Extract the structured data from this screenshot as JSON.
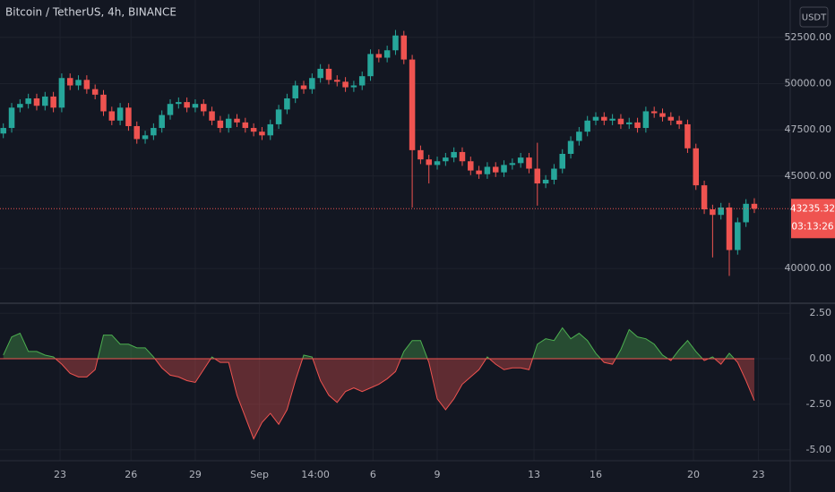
{
  "chart_data": [
    {
      "type": "candlestick",
      "title": "Bitcoin / TetherUS, 4h, BINANCE",
      "currency": "USDT",
      "countdown": "03:13:26",
      "up_color": "#26a69a",
      "down_color": "#ef5350",
      "grid": true,
      "xlim": [
        -0.4,
        94.3
      ],
      "ylim": [
        38170,
        54520
      ],
      "yticks": [
        {
          "value": 40000,
          "label": "40000.00"
        },
        {
          "value": 45000,
          "label": "45000.00"
        },
        {
          "value": 47500,
          "label": "47500.00"
        },
        {
          "value": 50000,
          "label": "50000.00"
        },
        {
          "value": 52500,
          "label": "52500.00"
        }
      ],
      "open": [
        47300,
        47600,
        48700,
        48900,
        49200,
        48800,
        49300,
        48700,
        50300,
        49900,
        50200,
        49700,
        49400,
        48500,
        48000,
        48700,
        47700,
        47000,
        47200,
        47600,
        48300,
        48900,
        49000,
        48700,
        48900,
        48500,
        48000,
        47600,
        48100,
        47900,
        47600,
        47400,
        47200,
        47800,
        48600,
        49200,
        49900,
        49700,
        50300,
        50800,
        50200,
        50100,
        49800,
        49900,
        50400,
        51600,
        51400,
        51800,
        52600,
        51300,
        46400,
        45900,
        45600,
        45800,
        46000,
        46300,
        45800,
        45300,
        45100,
        45500,
        45200,
        45600,
        45700,
        46000,
        45400,
        44600,
        44800,
        45400,
        46200,
        46900,
        47400,
        48000,
        48200,
        48000,
        48100,
        47800,
        47900,
        47600,
        48500,
        48400,
        48200,
        48000,
        47800,
        46500,
        44500,
        43200,
        42900,
        43300,
        41000,
        42500,
        43500
      ],
      "high": [
        47850,
        48950,
        49150,
        49450,
        49450,
        49550,
        49550,
        50550,
        50550,
        50450,
        50450,
        49950,
        49650,
        48750,
        48950,
        48950,
        47950,
        47450,
        47850,
        48550,
        49150,
        49250,
        49250,
        49150,
        49150,
        48750,
        48250,
        48350,
        48350,
        48150,
        47850,
        47650,
        48050,
        48850,
        49450,
        50150,
        50150,
        50550,
        51050,
        51050,
        50450,
        50350,
        50150,
        50650,
        51850,
        51850,
        52050,
        52900,
        52850,
        51550,
        46650,
        46150,
        46050,
        46250,
        46550,
        46550,
        46050,
        45550,
        45750,
        45750,
        45850,
        45950,
        46250,
        46250,
        46800,
        45050,
        45650,
        46450,
        47150,
        47650,
        48250,
        48450,
        48450,
        48350,
        48350,
        48150,
        48150,
        48750,
        48750,
        48650,
        48450,
        48250,
        48050,
        46750,
        44750,
        43450,
        43550,
        43550,
        42750,
        43750,
        43800
      ],
      "low": [
        47050,
        47350,
        48450,
        48650,
        48550,
        48550,
        48450,
        48450,
        49650,
        49650,
        49450,
        49150,
        48250,
        47750,
        47750,
        47450,
        46750,
        46750,
        46950,
        47350,
        48050,
        48650,
        48450,
        48450,
        48250,
        47750,
        47350,
        47350,
        47650,
        47350,
        47150,
        46950,
        46950,
        47550,
        48350,
        48950,
        49450,
        49450,
        50050,
        49950,
        49850,
        49550,
        49550,
        49650,
        50150,
        51150,
        51150,
        51550,
        51050,
        43300,
        45650,
        44600,
        45350,
        45550,
        45750,
        45550,
        45050,
        44850,
        44850,
        44950,
        44950,
        45350,
        45450,
        45150,
        43400,
        44350,
        44550,
        45150,
        45950,
        46650,
        47150,
        47750,
        47750,
        47750,
        47550,
        47550,
        47350,
        47350,
        48150,
        47950,
        47750,
        47550,
        46250,
        44250,
        42950,
        40600,
        42650,
        39600,
        40750,
        42250,
        43000
      ],
      "close": [
        47600,
        48700,
        48900,
        49200,
        48800,
        49300,
        48700,
        50300,
        49900,
        50200,
        49700,
        49400,
        48500,
        48000,
        48700,
        47700,
        47000,
        47200,
        47600,
        48300,
        48900,
        49000,
        48700,
        48900,
        48500,
        48000,
        47600,
        48100,
        47900,
        47600,
        47400,
        47200,
        47800,
        48600,
        49200,
        49900,
        49700,
        50300,
        50800,
        50200,
        50100,
        49800,
        49900,
        50400,
        51600,
        51400,
        51800,
        52600,
        51300,
        46400,
        45900,
        45600,
        45800,
        46000,
        46300,
        45800,
        45300,
        45100,
        45500,
        45200,
        45600,
        45700,
        46000,
        45400,
        44600,
        44800,
        45400,
        46200,
        46900,
        47400,
        48000,
        48200,
        48000,
        48100,
        47800,
        47900,
        47600,
        48500,
        48400,
        48200,
        48000,
        47800,
        46500,
        44500,
        43200,
        42900,
        43300,
        41000,
        42500,
        43500,
        43235.32
      ]
    },
    {
      "type": "area",
      "pos_color": "#4caf50",
      "neg_color": "#ef5350",
      "grid": true,
      "xlim": [
        -0.4,
        94.3
      ],
      "ylim": [
        -5.6,
        3.0
      ],
      "yticks": [
        {
          "value": -5,
          "label": "-5.00"
        },
        {
          "value": -2.5,
          "label": "-2.50"
        },
        {
          "value": 0,
          "label": "0.00"
        },
        {
          "value": 2.5,
          "label": "2.50"
        }
      ],
      "xticks": [
        {
          "value": 6.8,
          "label": "23"
        },
        {
          "value": 15.3,
          "label": "26"
        },
        {
          "value": 23.0,
          "label": "29"
        },
        {
          "value": 30.7,
          "label": "Sep"
        },
        {
          "value": 37.4,
          "label": "14:00"
        },
        {
          "value": 44.3,
          "label": "6"
        },
        {
          "value": 52.0,
          "label": "9"
        },
        {
          "value": 63.6,
          "label": "13"
        },
        {
          "value": 71.0,
          "label": "16"
        },
        {
          "value": 82.7,
          "label": "20"
        },
        {
          "value": 90.5,
          "label": "23"
        }
      ],
      "values": [
        0.2,
        1.2,
        1.4,
        0.4,
        0.4,
        0.2,
        0.1,
        -0.3,
        -0.8,
        -1.0,
        -1.0,
        -0.6,
        1.3,
        1.3,
        0.8,
        0.8,
        0.6,
        0.6,
        0.1,
        -0.5,
        -0.9,
        -1.0,
        -1.2,
        -1.3,
        -0.6,
        0.1,
        -0.2,
        -0.2,
        -2.0,
        -3.2,
        -4.4,
        -3.5,
        -3.0,
        -3.6,
        -2.8,
        -1.2,
        0.2,
        0.1,
        -1.2,
        -2.0,
        -2.4,
        -1.8,
        -1.6,
        -1.8,
        -1.6,
        -1.4,
        -1.1,
        -0.7,
        0.4,
        1.0,
        1.0,
        -0.2,
        -2.2,
        -2.8,
        -2.2,
        -1.4,
        -1.0,
        -0.6,
        0.1,
        -0.3,
        -0.6,
        -0.5,
        -0.5,
        -0.6,
        0.8,
        1.1,
        1.0,
        1.7,
        1.1,
        1.4,
        1.0,
        0.3,
        -0.2,
        -0.3,
        0.5,
        1.6,
        1.2,
        1.1,
        0.8,
        0.2,
        -0.1,
        0.5,
        1.0,
        0.4,
        -0.1,
        0.1,
        -0.3,
        0.3,
        -0.2,
        -1.2,
        -2.3
      ]
    }
  ]
}
